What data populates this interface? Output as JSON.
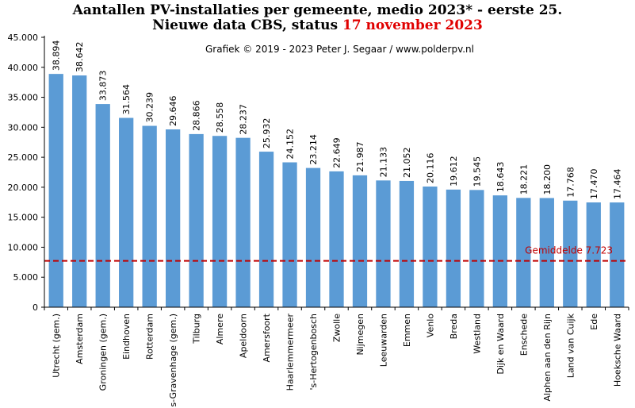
{
  "chart_data": {
    "type": "bar",
    "title_line1": "Aantallen  PV-installaties  per gemeente, medio 2023*  - eerste 25.",
    "title_line2_prefix": "Nieuwe data CBS, status ",
    "title_line2_highlight": "17 november 2023",
    "credit": "Grafiek  © 2019  - 2023  Peter J. Segaar / www.polderpv.nl",
    "categories": [
      "Utrecht (gem.)",
      "Amsterdam",
      "Groningen (gem.)",
      "Eindhoven",
      "Rotterdam",
      "s-Gravenhage (gem.)",
      "Tilburg",
      "Almere",
      "Apeldoorn",
      "Amersfoort",
      "Haarlemmermeer",
      "'s-Hertogenbosch",
      "Zwolle",
      "Nijmegen",
      "Leeuwarden",
      "Emmen",
      "Venlo",
      "Breda",
      "Westland",
      "Dijk en Waard",
      "Enschede",
      "Alphen aan den Rijn",
      "Land van Cuijk",
      "Ede",
      "Hoeksche Waard"
    ],
    "values": [
      38894,
      38642,
      33873,
      31564,
      30239,
      29646,
      28866,
      28558,
      28237,
      25932,
      24152,
      23214,
      22649,
      21987,
      21133,
      21052,
      20116,
      19612,
      19545,
      18643,
      18221,
      18200,
      17768,
      17470,
      17464
    ],
    "value_labels": [
      "38.894",
      "38.642",
      "33.873",
      "31.564",
      "30.239",
      "29.646",
      "28.866",
      "28.558",
      "28.237",
      "25.932",
      "24.152",
      "23.214",
      "22.649",
      "21.987",
      "21.133",
      "21.052",
      "20.116",
      "19.612",
      "19.545",
      "18.643",
      "18.221",
      "18.200",
      "17.768",
      "17.470",
      "17.464"
    ],
    "ylim": [
      0,
      45000
    ],
    "yticks": [
      0,
      5000,
      10000,
      15000,
      20000,
      25000,
      30000,
      35000,
      40000,
      45000
    ],
    "ytick_labels": [
      "0",
      "5.000",
      "10.000",
      "15.000",
      "20.000",
      "25.000",
      "30.000",
      "35.000",
      "40.000",
      "45.000"
    ],
    "average": {
      "label": "Gemiddelde  7.723",
      "value": 7723
    },
    "colors": {
      "bar": "#5b9bd5",
      "average": "#c00000",
      "highlight": "#e00000",
      "axis": "#000000"
    }
  }
}
